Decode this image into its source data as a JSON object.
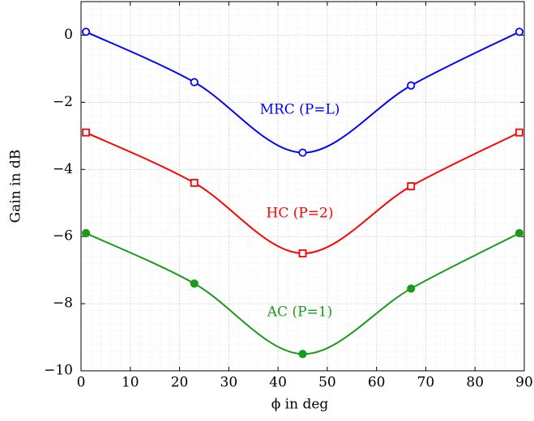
{
  "chart_data": {
    "type": "line",
    "xlabel": "ϕ in deg",
    "ylabel": "Gain in dB",
    "x": [
      1,
      23,
      45,
      67,
      89
    ],
    "series": [
      {
        "name": "MRC (P=L)",
        "color": "#0000ff",
        "marker": "open-circle",
        "values": [
          0.1,
          -1.4,
          -3.5,
          -1.5,
          0.1
        ]
      },
      {
        "name": "HC (P=2)",
        "color": "#ff0000",
        "marker": "open-square",
        "values": [
          -2.9,
          -4.4,
          -6.5,
          -4.5,
          -2.9
        ]
      },
      {
        "name": "AC (P=1)",
        "color": "#1a9a1a",
        "marker": "filled-circle",
        "values": [
          -5.9,
          -7.4,
          -9.5,
          -7.55,
          -5.9
        ]
      }
    ],
    "xlim": [
      0,
      90
    ],
    "xticks": [
      0,
      10,
      20,
      30,
      40,
      50,
      60,
      70,
      80,
      90
    ],
    "ylim": [
      -10,
      1
    ],
    "yticks": [
      {
        "value": -10,
        "label": "−10"
      },
      {
        "value": -8,
        "label": "−8"
      },
      {
        "value": -6,
        "label": "−6"
      },
      {
        "value": -4,
        "label": "−4"
      },
      {
        "value": -2,
        "label": "−2"
      },
      0
    ],
    "grid": true
  }
}
